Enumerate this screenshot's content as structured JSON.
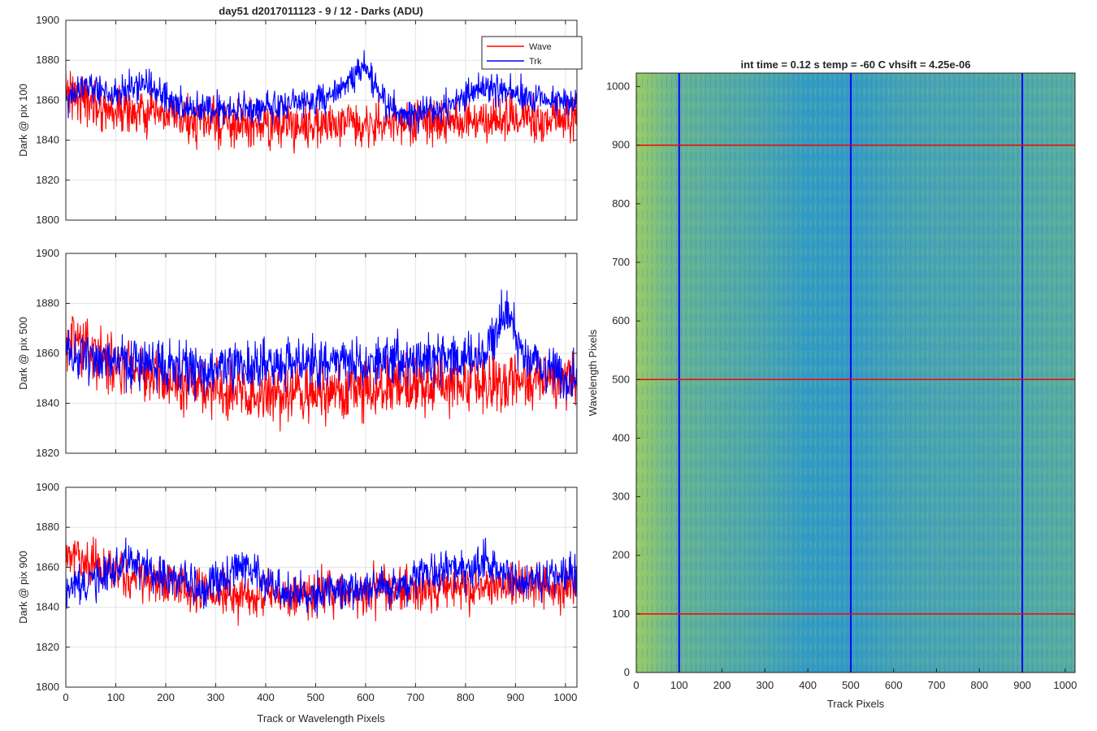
{
  "figure": {
    "title_left": "day51 d2017011123 - 9 / 12 - Darks (ADU)",
    "title_right": "int time = 0.12 s    temp = -60 C    vhsift = 4.25e-06",
    "xlabel_left": "Track or Wavelength Pixels",
    "xlabel_right": "Track Pixels",
    "ylabel_right": "Wavelength Pixels",
    "colors": {
      "wave": "#ff0000",
      "trk": "#0000ff",
      "axis": "#262626",
      "grid": "#e3e3e3",
      "image_base": "#1e9fd6"
    }
  },
  "chart_data": [
    {
      "type": "line",
      "ylabel": "Dark @ pix 100",
      "xlim": [
        0,
        1023
      ],
      "ylim": [
        1800,
        1900
      ],
      "x_ticks": [
        "0",
        "100",
        "200",
        "300",
        "400",
        "500",
        "600",
        "700",
        "800",
        "900",
        "1000"
      ],
      "y_ticks": [
        "1800",
        "1820",
        "1840",
        "1860",
        "1880",
        "1900"
      ],
      "grid": true,
      "legend": {
        "position": "top-right",
        "entries": [
          "Wave",
          "Trk"
        ]
      },
      "series": [
        {
          "name": "Wave",
          "color": "#ff0000",
          "x": [
            0,
            40,
            80,
            120,
            160,
            200,
            240,
            280,
            320,
            360,
            400,
            440,
            480,
            520,
            560,
            600,
            640,
            680,
            720,
            760,
            800,
            840,
            880,
            920,
            960,
            1000,
            1023
          ],
          "values": [
            1866,
            1860,
            1856,
            1854,
            1853,
            1852,
            1850,
            1849,
            1848,
            1847,
            1847,
            1847,
            1848,
            1848,
            1849,
            1849,
            1848,
            1848,
            1849,
            1849,
            1850,
            1850,
            1850,
            1850,
            1850,
            1850,
            1852
          ],
          "noise": 7
        },
        {
          "name": "Trk",
          "color": "#0000ff",
          "x": [
            0,
            40,
            80,
            120,
            160,
            200,
            240,
            280,
            320,
            360,
            400,
            440,
            480,
            520,
            560,
            600,
            640,
            680,
            720,
            760,
            800,
            840,
            880,
            920,
            960,
            1000,
            1023
          ],
          "values": [
            1860,
            1868,
            1864,
            1866,
            1868,
            1862,
            1856,
            1856,
            1856,
            1855,
            1856,
            1858,
            1860,
            1860,
            1868,
            1878,
            1858,
            1853,
            1853,
            1856,
            1862,
            1866,
            1864,
            1863,
            1860,
            1859,
            1860
          ],
          "noise": 5
        }
      ]
    },
    {
      "type": "line",
      "ylabel": "Dark @ pix 500",
      "xlim": [
        0,
        1023
      ],
      "ylim": [
        1820,
        1900
      ],
      "x_ticks": [
        "0",
        "100",
        "200",
        "300",
        "400",
        "500",
        "600",
        "700",
        "800",
        "900",
        "1000"
      ],
      "y_ticks": [
        "1820",
        "1840",
        "1860",
        "1880",
        "1900"
      ],
      "grid": true,
      "series": [
        {
          "name": "Wave",
          "color": "#ff0000",
          "x": [
            0,
            40,
            80,
            120,
            160,
            200,
            240,
            280,
            320,
            360,
            400,
            440,
            480,
            520,
            560,
            600,
            640,
            680,
            720,
            760,
            800,
            840,
            880,
            920,
            960,
            1000,
            1023
          ],
          "values": [
            1866,
            1862,
            1858,
            1856,
            1853,
            1850,
            1847,
            1845,
            1844,
            1843,
            1843,
            1843,
            1843,
            1844,
            1844,
            1845,
            1846,
            1846,
            1847,
            1847,
            1848,
            1848,
            1849,
            1849,
            1849,
            1849,
            1850
          ],
          "noise": 7
        },
        {
          "name": "Trk",
          "color": "#0000ff",
          "x": [
            0,
            40,
            80,
            120,
            160,
            200,
            240,
            280,
            320,
            360,
            400,
            440,
            480,
            520,
            560,
            600,
            640,
            680,
            720,
            760,
            800,
            840,
            880,
            920,
            960,
            1000,
            1023
          ],
          "values": [
            1858,
            1860,
            1858,
            1857,
            1856,
            1855,
            1855,
            1854,
            1854,
            1855,
            1855,
            1856,
            1856,
            1856,
            1857,
            1856,
            1857,
            1857,
            1858,
            1858,
            1858,
            1860,
            1876,
            1858,
            1853,
            1850,
            1849
          ],
          "noise": 6
        }
      ]
    },
    {
      "type": "line",
      "ylabel": "Dark @ pix 900",
      "xlim": [
        0,
        1023
      ],
      "ylim": [
        1800,
        1900
      ],
      "x_ticks": [
        "0",
        "100",
        "200",
        "300",
        "400",
        "500",
        "600",
        "700",
        "800",
        "900",
        "1000"
      ],
      "y_ticks": [
        "1800",
        "1820",
        "1840",
        "1860",
        "1880",
        "1900"
      ],
      "grid": true,
      "series": [
        {
          "name": "Wave",
          "color": "#ff0000",
          "x": [
            0,
            40,
            80,
            120,
            160,
            200,
            240,
            280,
            320,
            360,
            400,
            440,
            480,
            520,
            560,
            600,
            640,
            680,
            720,
            760,
            800,
            840,
            880,
            920,
            960,
            1000,
            1023
          ],
          "values": [
            1866,
            1862,
            1858,
            1856,
            1854,
            1852,
            1850,
            1848,
            1847,
            1846,
            1846,
            1846,
            1846,
            1847,
            1847,
            1848,
            1848,
            1848,
            1849,
            1850,
            1850,
            1850,
            1851,
            1851,
            1851,
            1850,
            1852
          ],
          "noise": 7
        },
        {
          "name": "Trk",
          "color": "#0000ff",
          "x": [
            0,
            40,
            80,
            120,
            160,
            200,
            240,
            280,
            320,
            360,
            400,
            440,
            480,
            520,
            560,
            600,
            640,
            680,
            720,
            760,
            800,
            840,
            880,
            920,
            960,
            1000,
            1023
          ],
          "values": [
            1848,
            1851,
            1856,
            1862,
            1858,
            1855,
            1852,
            1850,
            1854,
            1862,
            1852,
            1848,
            1847,
            1847,
            1848,
            1850,
            1850,
            1850,
            1856,
            1858,
            1859,
            1863,
            1856,
            1852,
            1855,
            1858,
            1856
          ],
          "noise": 6
        }
      ]
    },
    {
      "type": "heatmap",
      "xlim": [
        0,
        1023
      ],
      "ylim": [
        0,
        1023
      ],
      "x_ticks": [
        "0",
        "100",
        "200",
        "300",
        "400",
        "500",
        "600",
        "700",
        "800",
        "900",
        "1000"
      ],
      "y_ticks": [
        "0",
        "100",
        "200",
        "300",
        "400",
        "500",
        "600",
        "700",
        "800",
        "900",
        "1000"
      ],
      "column_brightness": {
        "x": [
          0,
          50,
          100,
          200,
          300,
          400,
          500,
          600,
          700,
          800,
          900,
          1000,
          1023
        ],
        "values": [
          0.95,
          0.75,
          0.55,
          0.45,
          0.35,
          0.2,
          0.18,
          0.3,
          0.35,
          0.35,
          0.4,
          0.45,
          0.45
        ]
      },
      "markers_vertical": {
        "x": [
          100,
          500,
          900
        ],
        "color": "#0000ff"
      },
      "markers_horizontal": {
        "y": [
          100,
          500,
          900
        ],
        "color": "#ff0000"
      }
    }
  ]
}
